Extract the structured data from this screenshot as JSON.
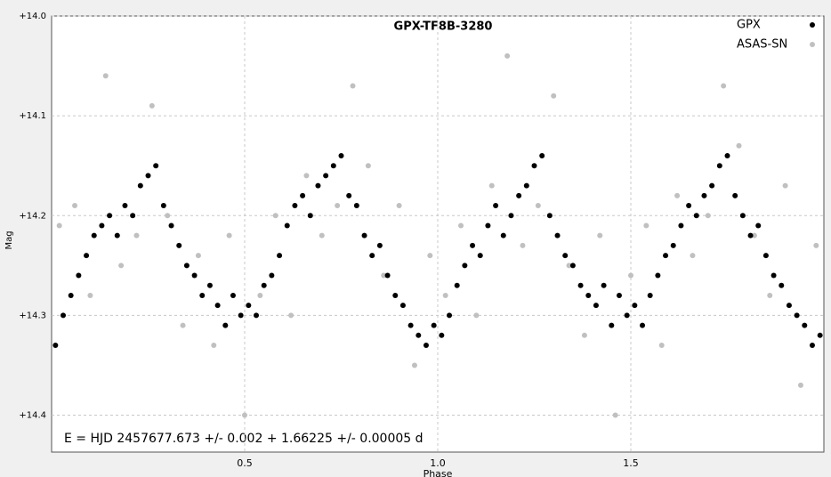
{
  "chart_data": {
    "type": "scatter",
    "title": "GPX-TF8B-3280",
    "x_label": "Phase",
    "y_label": "Mag",
    "annotation": "E = HJD 2457677.673 +/- 0.002 + 1.66225 +/- 0.00005 d",
    "xlim": [
      0,
      2
    ],
    "xticks": [
      0.5,
      {
        "value": 1,
        "label": "1.0"
      },
      1.5
    ],
    "ylim": [
      14.0,
      14.437
    ],
    "y_inverted": true,
    "yticks": [
      {
        "value": 14.0,
        "label": "+14.0"
      },
      {
        "value": 14.1,
        "label": "+14.1"
      },
      {
        "value": 14.2,
        "label": "+14.2"
      },
      {
        "value": 14.3,
        "label": "+14.3"
      },
      {
        "value": 14.4,
        "label": "+14.4"
      }
    ],
    "grid": true,
    "legend": "top-right",
    "series": [
      {
        "name": "ASAS-SN",
        "color": "#c0c0c0",
        "x": [
          0.02,
          0.06,
          0.1,
          0.14,
          0.18,
          0.22,
          0.26,
          0.3,
          0.34,
          0.38,
          0.42,
          0.46,
          0.5,
          0.54,
          0.58,
          0.62,
          0.66,
          0.7,
          0.74,
          0.78,
          0.82,
          0.86,
          0.9,
          0.94,
          0.98,
          1.02,
          1.06,
          1.1,
          1.14,
          1.18,
          1.22,
          1.26,
          1.3,
          1.34,
          1.38,
          1.42,
          1.46,
          1.5,
          1.54,
          1.58,
          1.62,
          1.66,
          1.7,
          1.74,
          1.78,
          1.82,
          1.86,
          1.9,
          1.94,
          1.98
        ],
        "values": [
          14.21,
          14.19,
          14.28,
          14.06,
          14.25,
          14.22,
          14.09,
          14.2,
          14.31,
          14.24,
          14.33,
          14.22,
          14.4,
          14.28,
          14.2,
          14.3,
          14.16,
          14.22,
          14.19,
          14.07,
          14.15,
          14.26,
          14.19,
          14.35,
          14.24,
          14.28,
          14.21,
          14.3,
          14.17,
          14.04,
          14.23,
          14.19,
          14.08,
          14.25,
          14.32,
          14.22,
          14.4,
          14.26,
          14.21,
          14.33,
          14.18,
          14.24,
          14.2,
          14.07,
          14.13,
          14.22,
          14.28,
          14.17,
          14.37,
          14.23
        ]
      },
      {
        "name": "GPX",
        "color": "#000000",
        "x": [
          0.01,
          0.03,
          0.05,
          0.07,
          0.09,
          0.11,
          0.13,
          0.15,
          0.17,
          0.19,
          0.21,
          0.23,
          0.25,
          0.27,
          0.29,
          0.31,
          0.33,
          0.35,
          0.37,
          0.39,
          0.41,
          0.43,
          0.45,
          0.47,
          0.49,
          0.51,
          0.53,
          0.55,
          0.57,
          0.59,
          0.61,
          0.63,
          0.65,
          0.67,
          0.69,
          0.71,
          0.73,
          0.75,
          0.77,
          0.79,
          0.81,
          0.83,
          0.85,
          0.87,
          0.89,
          0.91,
          0.93,
          0.95,
          0.97,
          0.99,
          1.01,
          1.03,
          1.05,
          1.07,
          1.09,
          1.11,
          1.13,
          1.15,
          1.17,
          1.19,
          1.21,
          1.23,
          1.25,
          1.27,
          1.29,
          1.31,
          1.33,
          1.35,
          1.37,
          1.39,
          1.41,
          1.43,
          1.45,
          1.47,
          1.49,
          1.51,
          1.53,
          1.55,
          1.57,
          1.59,
          1.61,
          1.63,
          1.65,
          1.67,
          1.69,
          1.71,
          1.73,
          1.75,
          1.77,
          1.79,
          1.81,
          1.83,
          1.85,
          1.87,
          1.89,
          1.91,
          1.93,
          1.95,
          1.97,
          1.99
        ],
        "values": [
          14.33,
          14.3,
          14.28,
          14.26,
          14.24,
          14.22,
          14.21,
          14.2,
          14.22,
          14.19,
          14.2,
          14.17,
          14.16,
          14.15,
          14.19,
          14.21,
          14.23,
          14.25,
          14.26,
          14.28,
          14.27,
          14.29,
          14.31,
          14.28,
          14.3,
          14.29,
          14.3,
          14.27,
          14.26,
          14.24,
          14.21,
          14.19,
          14.18,
          14.2,
          14.17,
          14.16,
          14.15,
          14.14,
          14.18,
          14.19,
          14.22,
          14.24,
          14.23,
          14.26,
          14.28,
          14.29,
          14.31,
          14.32,
          14.33,
          14.31,
          14.32,
          14.3,
          14.27,
          14.25,
          14.23,
          14.24,
          14.21,
          14.19,
          14.22,
          14.2,
          14.18,
          14.17,
          14.15,
          14.14,
          14.2,
          14.22,
          14.24,
          14.25,
          14.27,
          14.28,
          14.29,
          14.27,
          14.31,
          14.28,
          14.3,
          14.29,
          14.31,
          14.28,
          14.26,
          14.24,
          14.23,
          14.21,
          14.19,
          14.2,
          14.18,
          14.17,
          14.15,
          14.14,
          14.18,
          14.2,
          14.22,
          14.21,
          14.24,
          14.26,
          14.27,
          14.29,
          14.3,
          14.31,
          14.33,
          14.32
        ]
      }
    ]
  }
}
